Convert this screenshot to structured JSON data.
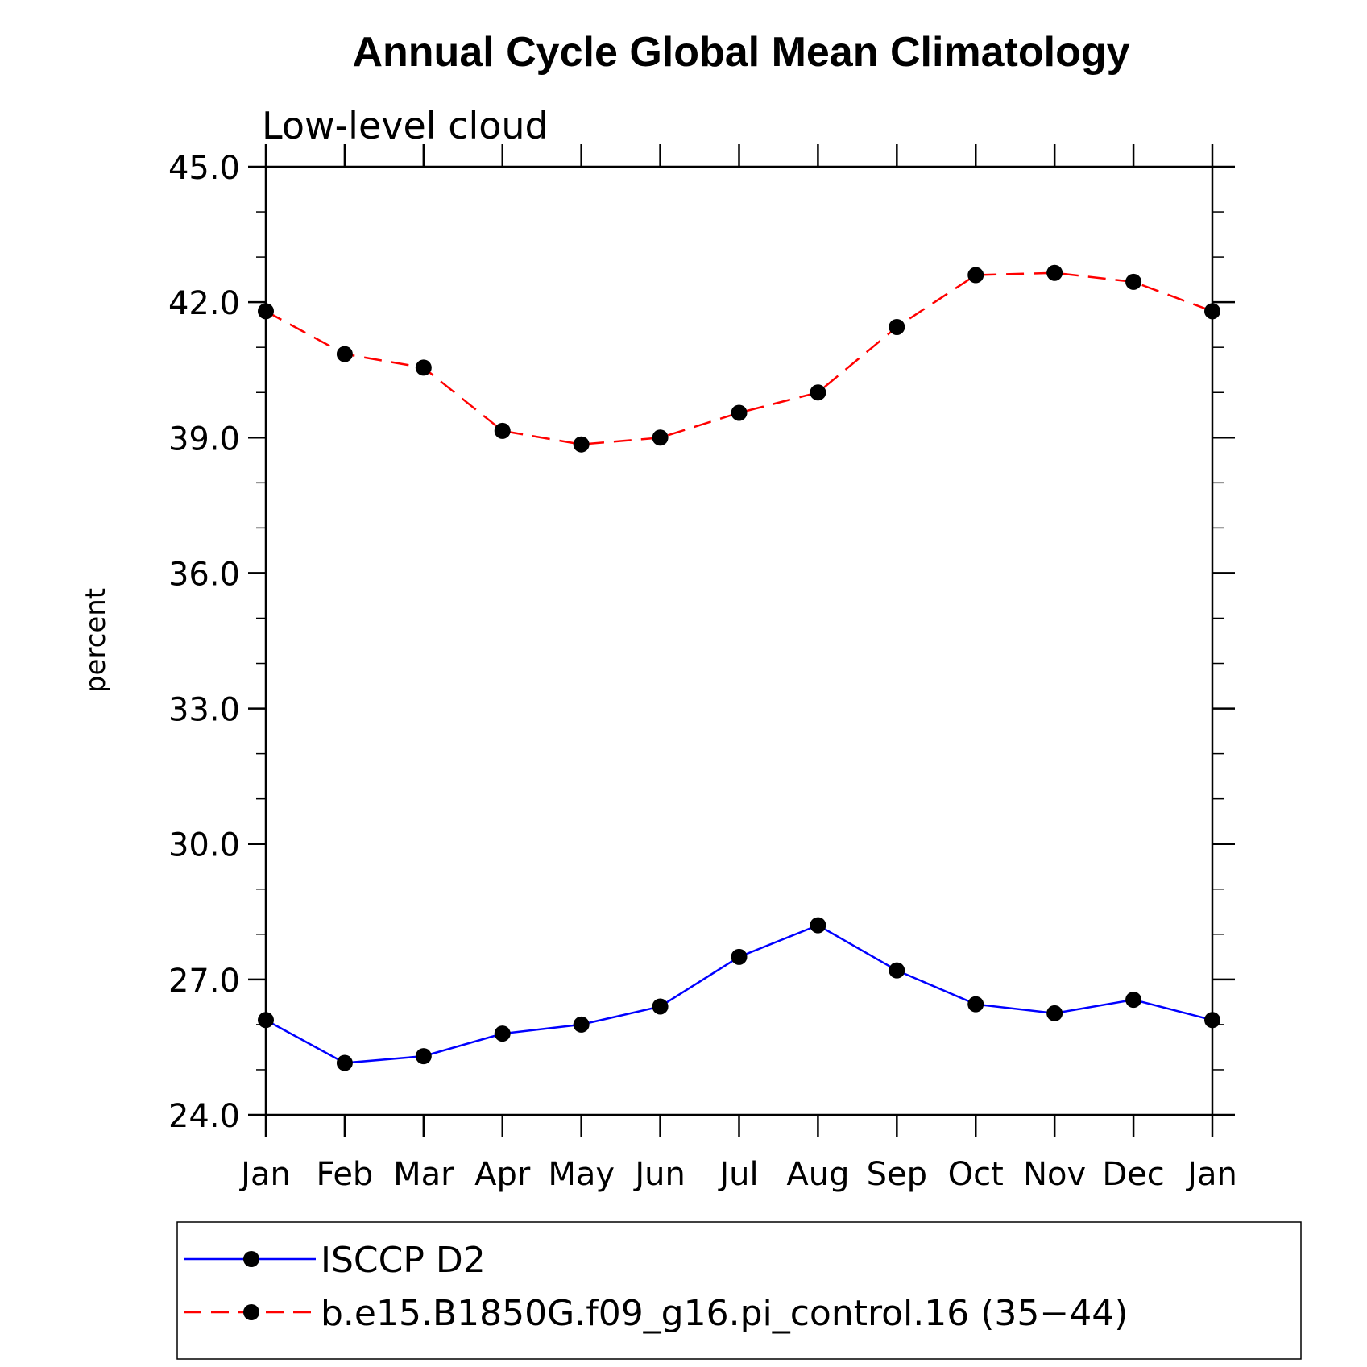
{
  "chart_data": {
    "type": "line",
    "title": "Annual Cycle Global Mean Climatology",
    "subtitle": "Low-level cloud",
    "ylabel": "percent",
    "ylim": [
      24.0,
      45.0
    ],
    "yticks": [
      "24.0",
      "27.0",
      "30.0",
      "33.0",
      "36.0",
      "39.0",
      "42.0",
      "45.0"
    ],
    "categories": [
      "Jan",
      "Feb",
      "Mar",
      "Apr",
      "May",
      "Jun",
      "Jul",
      "Aug",
      "Sep",
      "Oct",
      "Nov",
      "Dec",
      "Jan"
    ],
    "series": [
      {
        "name": "ISCCP D2",
        "color": "#0000ff",
        "dash": "solid",
        "values": [
          26.1,
          25.15,
          25.3,
          25.8,
          26.0,
          26.4,
          27.5,
          28.2,
          27.2,
          26.45,
          26.25,
          26.55,
          26.1
        ]
      },
      {
        "name": "b.e15.B1850G.f09_g16.pi_control.16 (35−44)",
        "color": "#ff0000",
        "dash": "dashed",
        "values": [
          41.8,
          40.85,
          40.55,
          39.15,
          38.85,
          39.0,
          39.55,
          40.0,
          41.45,
          42.6,
          42.65,
          42.45,
          41.8
        ]
      }
    ],
    "legend": "bottom"
  }
}
